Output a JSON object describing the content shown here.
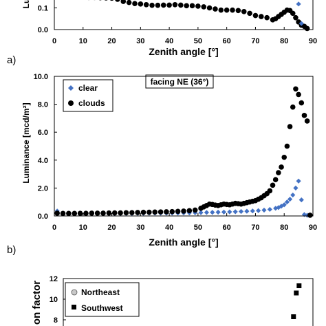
{
  "chart_data": [
    {
      "type": "scatter",
      "ylabel": "Lu",
      "xlabel": "Zenith angle [°]",
      "xticks": [
        "0",
        "10",
        "20",
        "30",
        "40",
        "50",
        "60",
        "70",
        "80",
        "90"
      ],
      "yticks": [
        "0.0",
        "0.1"
      ],
      "xlim": [
        0,
        90
      ],
      "ylim": [
        0,
        0.2
      ],
      "series": [
        {
          "marker": "circle",
          "color": "#000000",
          "x": [
            12,
            14,
            16,
            18,
            20,
            22,
            24,
            26,
            28,
            30,
            32,
            34,
            36,
            38,
            40,
            42,
            44,
            46,
            48,
            50,
            52,
            54,
            56,
            58,
            60,
            62,
            64,
            66,
            68,
            70,
            72,
            74,
            76,
            77,
            78,
            79,
            80,
            81,
            82,
            83,
            84,
            85,
            86,
            87,
            88
          ],
          "y": [
            0.148,
            0.148,
            0.147,
            0.146,
            0.145,
            0.14,
            0.13,
            0.125,
            0.12,
            0.118,
            0.115,
            0.112,
            0.112,
            0.113,
            0.113,
            0.115,
            0.113,
            0.11,
            0.11,
            0.108,
            0.105,
            0.1,
            0.095,
            0.09,
            0.09,
            0.09,
            0.088,
            0.083,
            0.075,
            0.065,
            0.06,
            0.055,
            0.045,
            0.05,
            0.06,
            0.07,
            0.08,
            0.09,
            0.088,
            0.075,
            0.055,
            0.035,
            0.02,
            0.015,
            0.005
          ]
        },
        {
          "marker": "diamond",
          "color": "#4472C4",
          "x": [
            85,
            86
          ],
          "y": [
            0.118,
            0.028
          ]
        }
      ]
    },
    {
      "type": "scatter",
      "panel_label": "a)",
      "title": "facing NE (36°)",
      "xlabel": "Zenith angle [°]",
      "ylabel": "Luminance [mcd/m²]",
      "xticks": [
        "0",
        "10",
        "20",
        "30",
        "40",
        "50",
        "60",
        "70",
        "80",
        "90"
      ],
      "yticks": [
        "0.0",
        "2.0",
        "4.0",
        "6.0",
        "8.0",
        "10.0"
      ],
      "xlim": [
        0,
        90
      ],
      "ylim": [
        0,
        10
      ],
      "legend_position": "top-left",
      "series": [
        {
          "name": "clear",
          "marker": "diamond",
          "color": "#4472C4",
          "x": [
            1,
            3,
            5,
            7,
            9,
            11,
            13,
            15,
            17,
            19,
            21,
            23,
            25,
            27,
            29,
            31,
            33,
            35,
            37,
            39,
            41,
            43,
            45,
            47,
            49,
            51,
            53,
            55,
            57,
            59,
            61,
            63,
            65,
            67,
            69,
            71,
            73,
            75,
            77,
            78,
            79,
            80,
            81,
            82,
            83,
            84,
            85,
            86,
            87,
            88
          ],
          "y": [
            0.35,
            0.15,
            0.15,
            0.15,
            0.15,
            0.16,
            0.16,
            0.16,
            0.17,
            0.17,
            0.17,
            0.18,
            0.18,
            0.18,
            0.19,
            0.19,
            0.2,
            0.2,
            0.2,
            0.2,
            0.21,
            0.21,
            0.22,
            0.22,
            0.23,
            0.24,
            0.25,
            0.26,
            0.27,
            0.28,
            0.29,
            0.3,
            0.32,
            0.34,
            0.36,
            0.38,
            0.42,
            0.47,
            0.55,
            0.6,
            0.7,
            0.8,
            1.0,
            1.2,
            1.5,
            2.0,
            2.5,
            1.15,
            0.1,
            0.05
          ]
        },
        {
          "name": "clouds",
          "marker": "circle",
          "color": "#000000",
          "x": [
            1,
            3,
            5,
            7,
            9,
            11,
            13,
            15,
            17,
            19,
            21,
            23,
            25,
            27,
            29,
            31,
            33,
            35,
            37,
            39,
            41,
            43,
            45,
            47,
            49,
            51,
            52,
            53,
            54,
            55,
            56,
            57,
            58,
            59,
            60,
            61,
            62,
            63,
            64,
            65,
            66,
            67,
            68,
            69,
            70,
            71,
            72,
            73,
            74,
            75,
            76,
            77,
            78,
            79,
            80,
            81,
            82,
            83,
            84,
            85,
            86,
            87,
            88,
            89
          ],
          "y": [
            0.2,
            0.18,
            0.18,
            0.18,
            0.19,
            0.19,
            0.2,
            0.2,
            0.2,
            0.21,
            0.22,
            0.22,
            0.23,
            0.24,
            0.25,
            0.26,
            0.27,
            0.28,
            0.29,
            0.3,
            0.31,
            0.33,
            0.35,
            0.38,
            0.42,
            0.55,
            0.65,
            0.75,
            0.85,
            0.82,
            0.78,
            0.75,
            0.8,
            0.85,
            0.82,
            0.8,
            0.85,
            0.9,
            0.88,
            0.85,
            0.9,
            0.95,
            1.0,
            1.05,
            1.1,
            1.2,
            1.3,
            1.45,
            1.6,
            1.8,
            2.2,
            2.6,
            3.1,
            3.5,
            4.2,
            5.0,
            6.4,
            7.8,
            9.1,
            8.7,
            8.1,
            7.2,
            6.8,
            0.05
          ]
        }
      ]
    },
    {
      "type": "scatter",
      "panel_label": "b)",
      "ylabel": "on factor",
      "yticks": [
        "8",
        "10",
        "12"
      ],
      "xlim": [
        0,
        90
      ],
      "ylim": [
        8,
        12
      ],
      "legend_position": "top-left",
      "series": [
        {
          "name": "Northeast",
          "marker": "circle",
          "color": "#C8C8C8",
          "x": [],
          "y": []
        },
        {
          "name": "Southwest",
          "marker": "square",
          "color": "#000000",
          "x": [
            83,
            84,
            85
          ],
          "y": [
            8.3,
            10.6,
            11.3
          ]
        }
      ]
    }
  ]
}
